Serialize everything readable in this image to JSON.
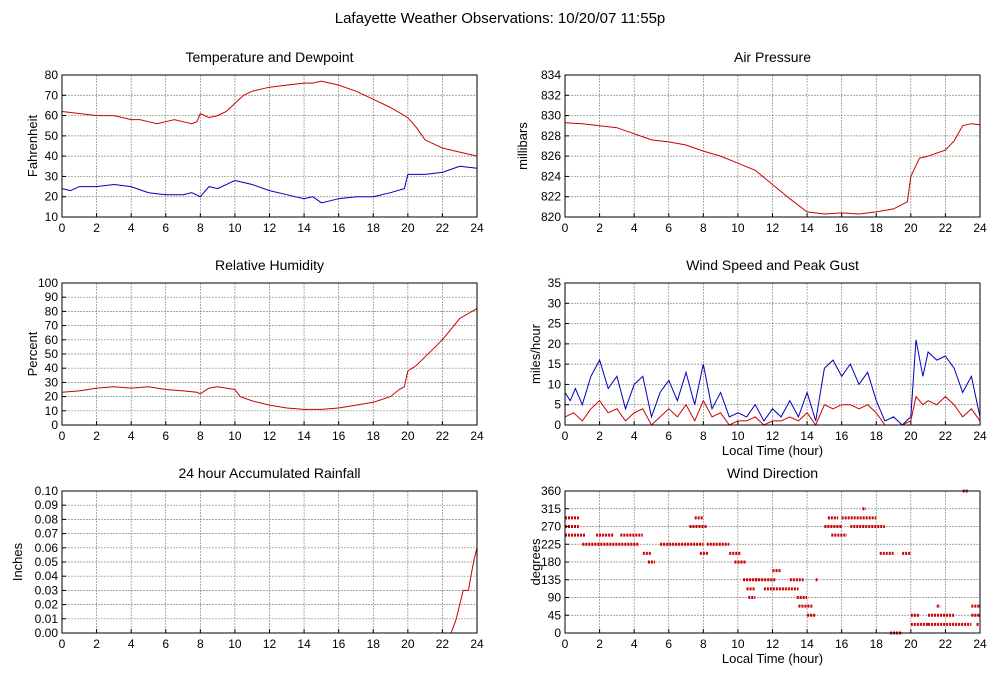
{
  "title": "Lafayette Weather Observations: 10/20/07 11:55p",
  "colors": {
    "red": "#cc0000",
    "blue": "#0000bb",
    "grid": "#888888"
  },
  "chart_data": [
    {
      "id": "temp",
      "type": "line",
      "title": "Temperature and Dewpoint",
      "xlabel": "",
      "ylabel": "Fahrenheit",
      "xlim": [
        0,
        24
      ],
      "ylim": [
        10,
        80
      ],
      "xticks": [
        0,
        2,
        4,
        6,
        8,
        10,
        12,
        14,
        16,
        18,
        20,
        22,
        24
      ],
      "yticks": [
        10,
        20,
        30,
        40,
        50,
        60,
        70,
        80
      ],
      "grid": true,
      "series": [
        {
          "color": "#cc0000",
          "x": [
            0,
            1,
            2,
            3,
            4,
            4.5,
            5,
            5.5,
            6,
            6.5,
            7,
            7.5,
            7.8,
            8,
            8.5,
            9,
            9.5,
            10,
            10.5,
            11,
            12,
            13,
            14,
            14.5,
            15,
            15.5,
            16,
            17,
            18,
            19,
            20,
            20.5,
            21,
            22,
            23,
            24
          ],
          "y": [
            62,
            61,
            60,
            60,
            58,
            58,
            57,
            56,
            57,
            58,
            57,
            56,
            57,
            61,
            59,
            60,
            62,
            66,
            70,
            72,
            74,
            75,
            76,
            76,
            77,
            76,
            75,
            72,
            68,
            64,
            59,
            54,
            48,
            44,
            42,
            40
          ]
        },
        {
          "color": "#0000bb",
          "x": [
            0,
            0.5,
            1,
            2,
            3,
            4,
            5,
            6,
            7,
            7.5,
            8,
            8.5,
            9,
            10,
            10.5,
            11,
            12,
            13,
            14,
            14.5,
            15,
            15.5,
            16,
            17,
            18,
            19,
            19.8,
            20,
            21,
            22,
            23,
            24
          ],
          "y": [
            24,
            23,
            25,
            25,
            26,
            25,
            22,
            21,
            21,
            22,
            20,
            25,
            24,
            28,
            27,
            26,
            23,
            21,
            19,
            20,
            17,
            18,
            19,
            20,
            20,
            22,
            24,
            31,
            31,
            32,
            35,
            34
          ]
        }
      ]
    },
    {
      "id": "pressure",
      "type": "line",
      "title": "Air Pressure",
      "xlabel": "",
      "ylabel": "millibars",
      "xlim": [
        0,
        24
      ],
      "ylim": [
        820,
        834
      ],
      "xticks": [
        0,
        2,
        4,
        6,
        8,
        10,
        12,
        14,
        16,
        18,
        20,
        22,
        24
      ],
      "yticks": [
        820,
        822,
        824,
        826,
        828,
        830,
        832,
        834
      ],
      "grid": true,
      "series": [
        {
          "color": "#cc0000",
          "x": [
            0,
            1,
            2,
            3,
            4,
            5,
            6,
            7,
            8,
            9,
            10,
            11,
            12,
            13,
            14,
            15,
            16,
            17,
            18,
            19,
            19.8,
            20,
            20.5,
            21,
            22,
            22.5,
            23,
            23.5,
            24
          ],
          "y": [
            829.3,
            829.2,
            829,
            828.8,
            828.2,
            827.6,
            827.4,
            827.1,
            826.5,
            826,
            825.3,
            824.6,
            823.2,
            821.8,
            820.5,
            820.3,
            820.4,
            820.3,
            820.5,
            820.8,
            821.5,
            824,
            825.8,
            826,
            826.6,
            827.5,
            829,
            829.2,
            829.1
          ]
        }
      ]
    },
    {
      "id": "humidity",
      "type": "line",
      "title": "Relative Humidity",
      "xlabel": "",
      "ylabel": "Percent",
      "xlim": [
        0,
        24
      ],
      "ylim": [
        0,
        100
      ],
      "xticks": [
        0,
        2,
        4,
        6,
        8,
        10,
        12,
        14,
        16,
        18,
        20,
        22,
        24
      ],
      "yticks": [
        0,
        10,
        20,
        30,
        40,
        50,
        60,
        70,
        80,
        90,
        100
      ],
      "grid": true,
      "series": [
        {
          "color": "#cc0000",
          "x": [
            0,
            1,
            2,
            3,
            4,
            5,
            6,
            7,
            7.8,
            8,
            8.5,
            9,
            10,
            10.3,
            11,
            12,
            13,
            14,
            15,
            16,
            17,
            18,
            19,
            19.5,
            19.8,
            20,
            20.5,
            21,
            22,
            23,
            24
          ],
          "y": [
            23,
            24,
            26,
            27,
            26,
            27,
            25,
            24,
            23,
            22,
            26,
            27,
            25,
            20,
            17,
            14,
            12,
            11,
            11,
            12,
            14,
            16,
            20,
            25,
            27,
            38,
            42,
            48,
            60,
            75,
            82
          ]
        }
      ]
    },
    {
      "id": "wind",
      "type": "line",
      "title": "Wind Speed and Peak Gust",
      "xlabel": "Local Time (hour)",
      "ylabel": "miles/hour",
      "xlim": [
        0,
        24
      ],
      "ylim": [
        0,
        35
      ],
      "xticks": [
        0,
        2,
        4,
        6,
        8,
        10,
        12,
        14,
        16,
        18,
        20,
        22,
        24
      ],
      "yticks": [
        0,
        5,
        10,
        15,
        20,
        25,
        30,
        35
      ],
      "grid": true,
      "series": [
        {
          "color": "#0000bb",
          "x": [
            0,
            0.3,
            0.6,
            1,
            1.5,
            2,
            2.5,
            3,
            3.5,
            4,
            4.5,
            5,
            5.5,
            6,
            6.5,
            7,
            7.5,
            8,
            8.5,
            9,
            9.5,
            10,
            10.5,
            11,
            11.5,
            12,
            12.5,
            13,
            13.5,
            14,
            14.5,
            15,
            15.5,
            16,
            16.5,
            17,
            17.5,
            18,
            18.5,
            19,
            19.5,
            20,
            20.3,
            20.7,
            21,
            21.5,
            22,
            22.5,
            23,
            23.5,
            24
          ],
          "y": [
            8,
            6,
            9,
            5,
            12,
            16,
            9,
            12,
            4,
            10,
            12,
            2,
            8,
            11,
            6,
            13,
            5,
            15,
            4,
            8,
            2,
            3,
            2,
            5,
            1,
            4,
            2,
            6,
            2,
            8,
            1,
            14,
            16,
            12,
            15,
            10,
            13,
            6,
            1,
            2,
            0,
            2,
            21,
            12,
            18,
            16,
            17,
            14,
            8,
            12,
            2
          ]
        },
        {
          "color": "#cc0000",
          "x": [
            0,
            0.5,
            1,
            1.5,
            2,
            2.5,
            3,
            3.5,
            4,
            4.5,
            5,
            5.5,
            6,
            6.5,
            7,
            7.5,
            8,
            8.5,
            9,
            9.5,
            10,
            10.5,
            11,
            11.5,
            12,
            12.5,
            13,
            13.5,
            14,
            14.5,
            15,
            15.5,
            16,
            16.5,
            17,
            17.5,
            18,
            18.5,
            19,
            19.5,
            20,
            20.3,
            20.7,
            21,
            21.5,
            22,
            22.5,
            23,
            23.5,
            24
          ],
          "y": [
            2,
            3,
            1,
            4,
            6,
            3,
            4,
            1,
            3,
            4,
            0,
            2,
            4,
            2,
            5,
            1,
            6,
            2,
            3,
            0,
            1,
            1,
            2,
            0,
            1,
            1,
            2,
            1,
            3,
            0,
            5,
            4,
            5,
            5,
            4,
            5,
            3,
            0,
            0,
            0,
            1,
            7,
            5,
            6,
            5,
            7,
            5,
            2,
            4,
            1
          ]
        }
      ]
    },
    {
      "id": "rain",
      "type": "line",
      "title": "24 hour Accumulated Rainfall",
      "xlabel": "",
      "ylabel": "Inches",
      "xlim": [
        0,
        24
      ],
      "ylim": [
        0,
        0.1
      ],
      "xticks": [
        0,
        2,
        4,
        6,
        8,
        10,
        12,
        14,
        16,
        18,
        20,
        22,
        24
      ],
      "yticks": [
        0,
        0.01,
        0.02,
        0.03,
        0.04,
        0.05,
        0.06,
        0.07,
        0.08,
        0.09,
        0.1
      ],
      "ytick_labels": [
        "0.00",
        "0.01",
        "0.02",
        "0.03",
        "0.04",
        "0.05",
        "0.06",
        "0.07",
        "0.08",
        "0.09",
        "0.10"
      ],
      "grid": true,
      "series": [
        {
          "color": "#cc0000",
          "x": [
            0,
            22.5,
            22.8,
            23,
            23.2,
            23.5,
            23.8,
            24
          ],
          "y": [
            0,
            0,
            0.01,
            0.02,
            0.03,
            0.03,
            0.05,
            0.06
          ]
        }
      ]
    },
    {
      "id": "dir",
      "type": "scatter",
      "title": "Wind Direction",
      "xlabel": "Local Time (hour)",
      "ylabel": "degrees",
      "xlim": [
        0,
        24
      ],
      "ylim": [
        0,
        360
      ],
      "xticks": [
        0,
        2,
        4,
        6,
        8,
        10,
        12,
        14,
        16,
        18,
        20,
        22,
        24
      ],
      "yticks": [
        0,
        45,
        90,
        135,
        180,
        225,
        270,
        315,
        360
      ],
      "grid": true,
      "series": [
        {
          "color": "#cc0000",
          "segments": [
            [
              0,
              0.8,
              292
            ],
            [
              0,
              0.8,
              270
            ],
            [
              0,
              1.2,
              248
            ],
            [
              1,
              4.3,
              225
            ],
            [
              1.8,
              2.8,
              248
            ],
            [
              3.2,
              4.5,
              248
            ],
            [
              4.5,
              5,
              202
            ],
            [
              4.8,
              5.2,
              180
            ],
            [
              5.5,
              8,
              225
            ],
            [
              7.2,
              8.2,
              270
            ],
            [
              7.5,
              8,
              292
            ],
            [
              7.8,
              8.3,
              202
            ],
            [
              8.2,
              9.5,
              225
            ],
            [
              9.5,
              10.2,
              202
            ],
            [
              9.8,
              10.5,
              180
            ],
            [
              10.3,
              11.2,
              135
            ],
            [
              10.5,
              11,
              112
            ],
            [
              10.6,
              11,
              90
            ],
            [
              11,
              12.2,
              135
            ],
            [
              11.5,
              13.5,
              112
            ],
            [
              12,
              12.5,
              158
            ],
            [
              13,
              13.8,
              135
            ],
            [
              13.4,
              14,
              90
            ],
            [
              13.5,
              14.3,
              68
            ],
            [
              14,
              14.5,
              45
            ],
            [
              14.5,
              14.6,
              135
            ],
            [
              15,
              16,
              270
            ],
            [
              15.2,
              15.8,
              292
            ],
            [
              15.4,
              16.3,
              248
            ],
            [
              16,
              18,
              292
            ],
            [
              16.5,
              18.5,
              270
            ],
            [
              17.2,
              17.4,
              315
            ],
            [
              18.2,
              19,
              202
            ],
            [
              18.8,
              19.5,
              0
            ],
            [
              19.5,
              20,
              202
            ],
            [
              20,
              20.5,
              45
            ],
            [
              20,
              21,
              22
            ],
            [
              21,
              23.5,
              22
            ],
            [
              21.5,
              21.7,
              68
            ],
            [
              21,
              22.5,
              45
            ],
            [
              23,
              23.3,
              360
            ],
            [
              23.5,
              24,
              68
            ],
            [
              23.5,
              24,
              45
            ],
            [
              23.8,
              24,
              22
            ]
          ]
        }
      ]
    }
  ]
}
